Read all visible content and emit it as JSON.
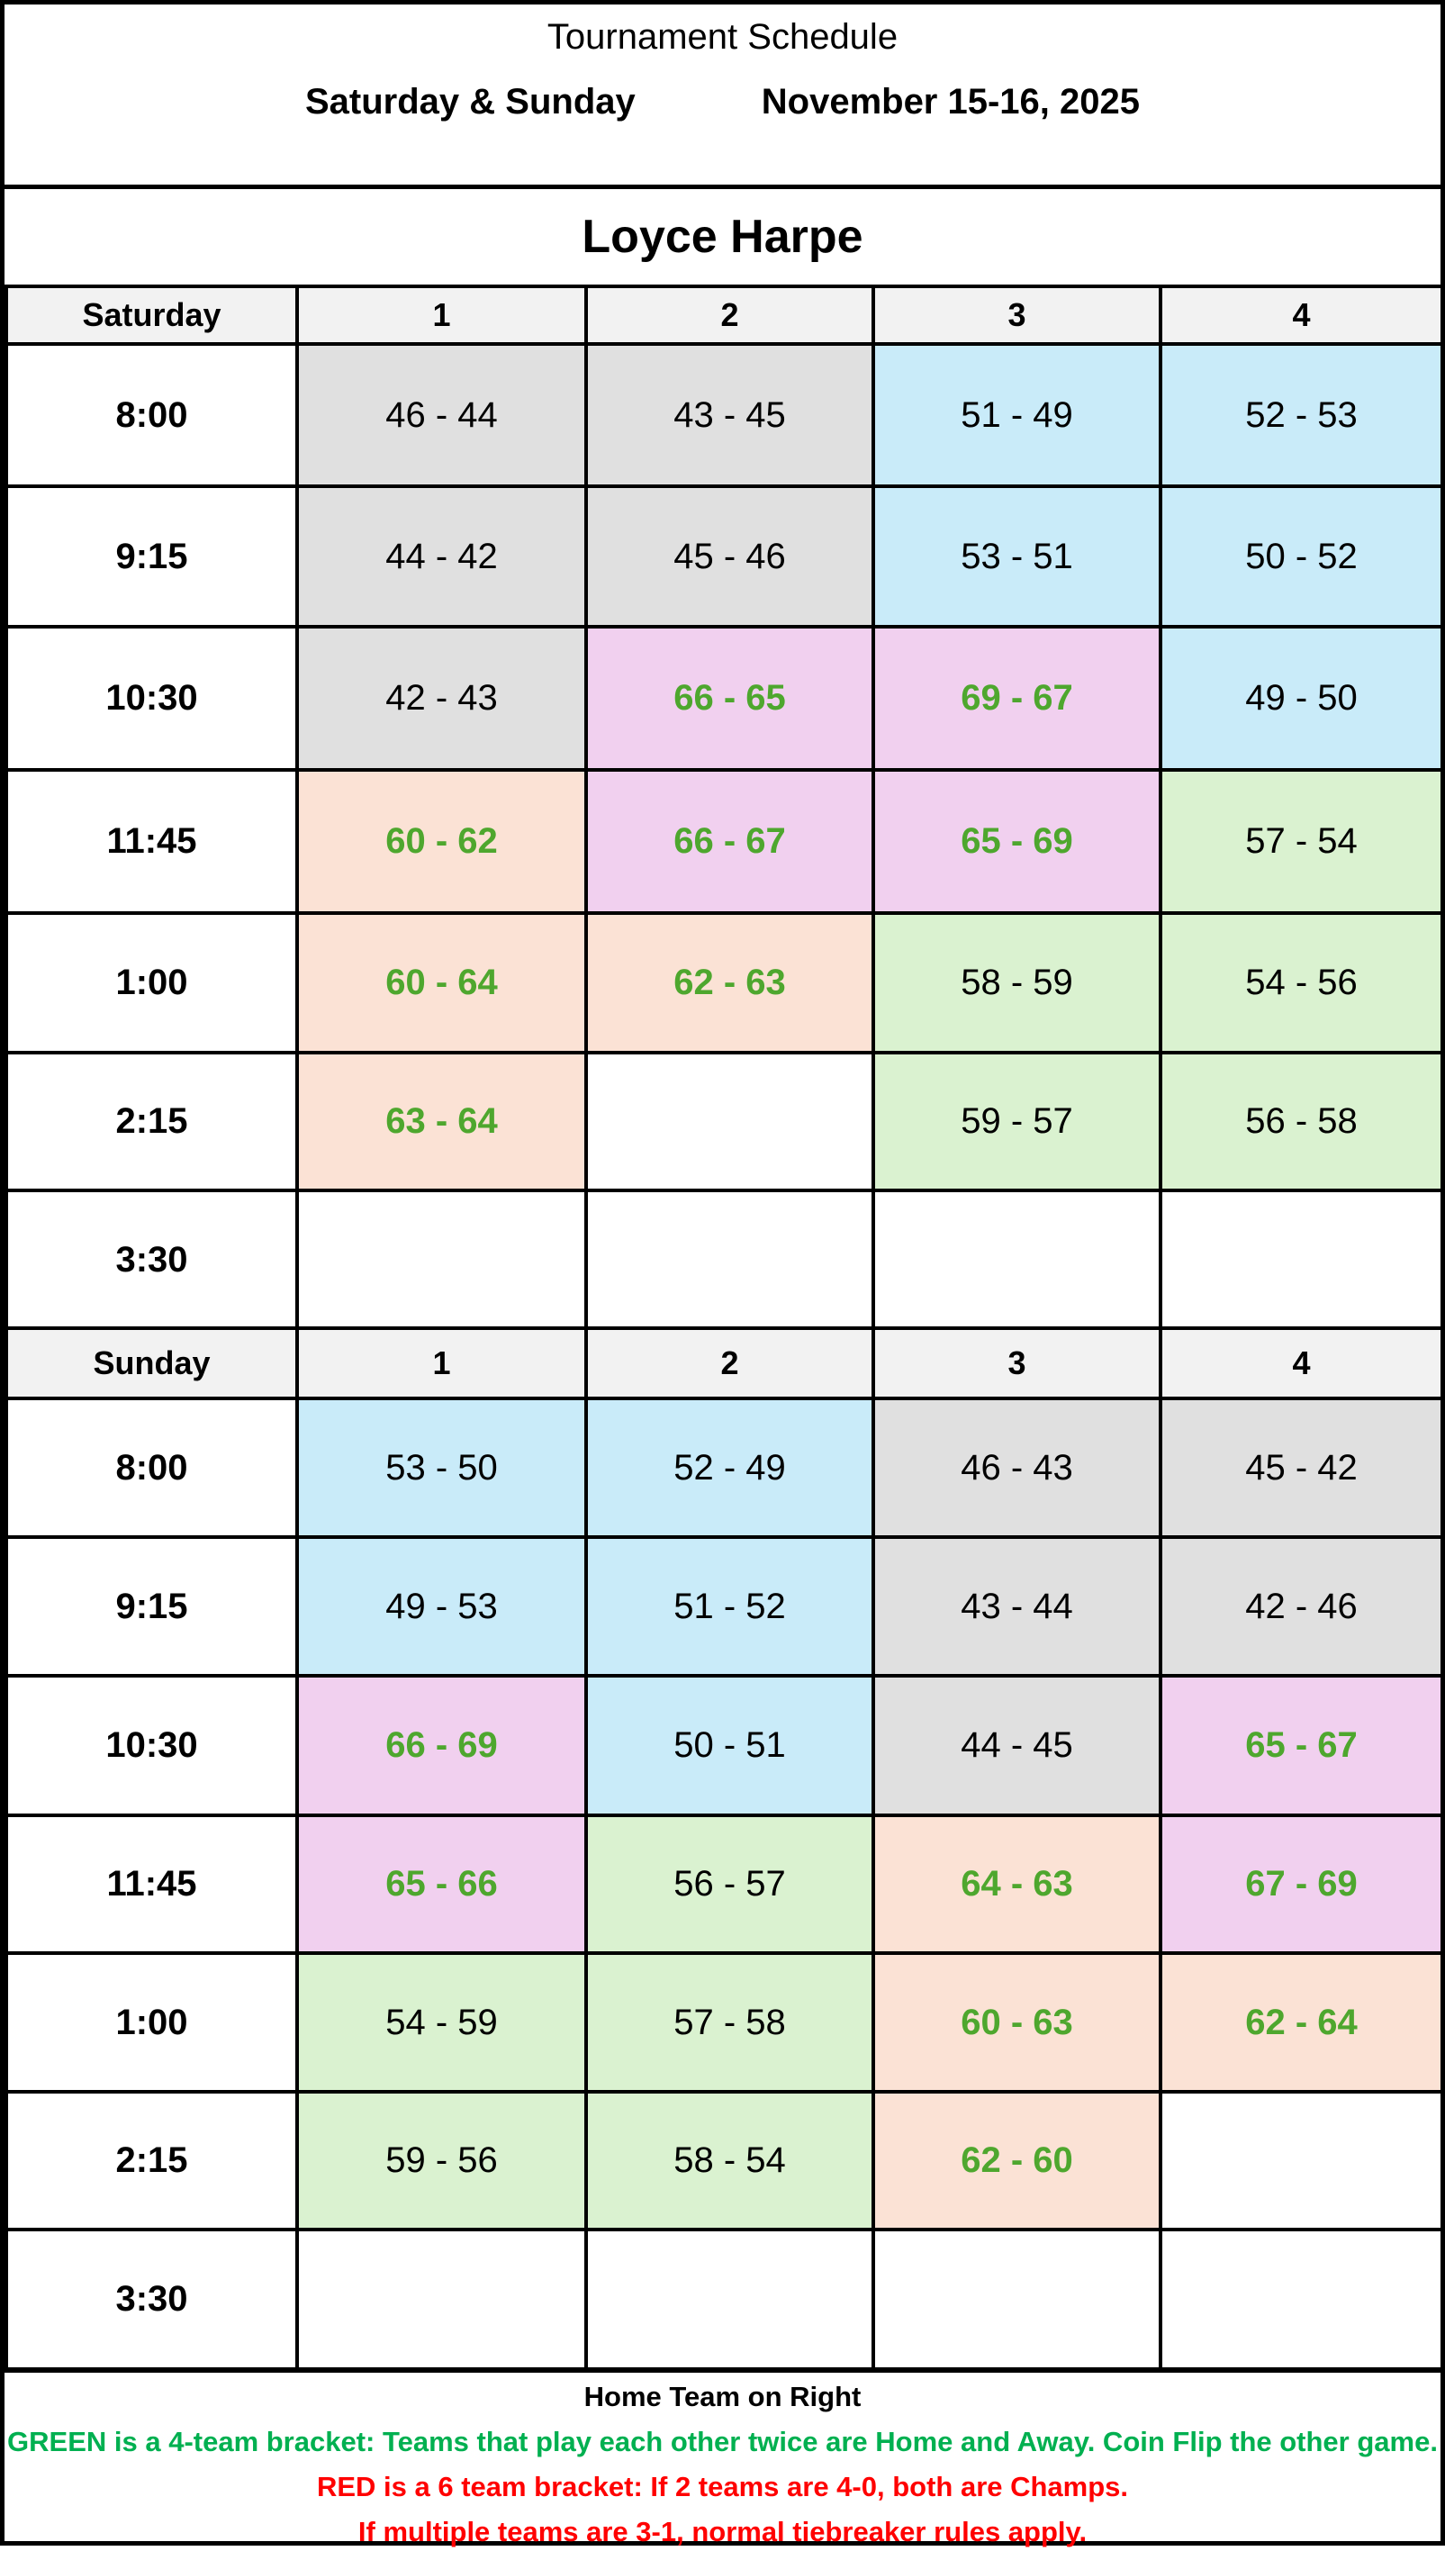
{
  "header": {
    "title": "Tournament Schedule",
    "days_label": "Saturday & Sunday",
    "dates_label": "November 15-16, 2025"
  },
  "venue": "Loyce Harpe",
  "colors": {
    "gray": "#e0e0e0",
    "blue": "#c9ebf9",
    "pink": "#f1d0ef",
    "peach": "#fbe2d5",
    "green": "#daf2d0",
    "white": "#ffffff",
    "bracket_text_green": "#4ea72e"
  },
  "days": [
    {
      "label": "Saturday",
      "courts": [
        "1",
        "2",
        "3",
        "4"
      ],
      "rows": [
        {
          "time": "8:00",
          "cells": [
            {
              "text": "46 - 44",
              "color": "gray"
            },
            {
              "text": "43 - 45",
              "color": "gray"
            },
            {
              "text": "51 - 49",
              "color": "blue"
            },
            {
              "text": "52 - 53",
              "color": "blue"
            }
          ]
        },
        {
          "time": "9:15",
          "cells": [
            {
              "text": "44 - 42",
              "color": "gray"
            },
            {
              "text": "45 - 46",
              "color": "gray"
            },
            {
              "text": "53 - 51",
              "color": "blue"
            },
            {
              "text": "50 - 52",
              "color": "blue"
            }
          ]
        },
        {
          "time": "10:30",
          "cells": [
            {
              "text": "42 - 43",
              "color": "gray"
            },
            {
              "text": "66 - 65",
              "color": "pink",
              "bold_green": true
            },
            {
              "text": "69 - 67",
              "color": "pink",
              "bold_green": true
            },
            {
              "text": "49 - 50",
              "color": "blue"
            }
          ]
        },
        {
          "time": "11:45",
          "cells": [
            {
              "text": "60 - 62",
              "color": "peach",
              "bold_green": true
            },
            {
              "text": "66 - 67",
              "color": "pink",
              "bold_green": true
            },
            {
              "text": "65 - 69",
              "color": "pink",
              "bold_green": true
            },
            {
              "text": "57 - 54",
              "color": "green"
            }
          ]
        },
        {
          "time": "1:00",
          "cells": [
            {
              "text": "60 - 64",
              "color": "peach",
              "bold_green": true
            },
            {
              "text": "62 - 63",
              "color": "peach",
              "bold_green": true
            },
            {
              "text": "58 - 59",
              "color": "green"
            },
            {
              "text": "54 - 56",
              "color": "green"
            }
          ]
        },
        {
          "time": "2:15",
          "cells": [
            {
              "text": "63 - 64",
              "color": "peach",
              "bold_green": true
            },
            {
              "text": "",
              "color": "white"
            },
            {
              "text": "59 - 57",
              "color": "green"
            },
            {
              "text": "56 - 58",
              "color": "green"
            }
          ]
        },
        {
          "time": "3:30",
          "cells": [
            {
              "text": "",
              "color": "white"
            },
            {
              "text": "",
              "color": "white"
            },
            {
              "text": "",
              "color": "white"
            },
            {
              "text": "",
              "color": "white"
            }
          ]
        }
      ]
    },
    {
      "label": "Sunday",
      "courts": [
        "1",
        "2",
        "3",
        "4"
      ],
      "rows": [
        {
          "time": "8:00",
          "cells": [
            {
              "text": "53 - 50",
              "color": "blue"
            },
            {
              "text": "52 - 49",
              "color": "blue"
            },
            {
              "text": "46 - 43",
              "color": "gray"
            },
            {
              "text": "45 - 42",
              "color": "gray"
            }
          ]
        },
        {
          "time": "9:15",
          "cells": [
            {
              "text": "49 - 53",
              "color": "blue"
            },
            {
              "text": "51 - 52",
              "color": "blue"
            },
            {
              "text": "43 - 44",
              "color": "gray"
            },
            {
              "text": "42 - 46",
              "color": "gray"
            }
          ]
        },
        {
          "time": "10:30",
          "cells": [
            {
              "text": "66 - 69",
              "color": "pink",
              "bold_green": true
            },
            {
              "text": "50 - 51",
              "color": "blue"
            },
            {
              "text": "44 - 45",
              "color": "gray"
            },
            {
              "text": "65 - 67",
              "color": "pink",
              "bold_green": true
            }
          ]
        },
        {
          "time": "11:45",
          "cells": [
            {
              "text": "65 - 66",
              "color": "pink",
              "bold_green": true
            },
            {
              "text": "56 - 57",
              "color": "green"
            },
            {
              "text": "64 - 63",
              "color": "peach",
              "bold_green": true
            },
            {
              "text": "67 - 69",
              "color": "pink",
              "bold_green": true
            }
          ]
        },
        {
          "time": "1:00",
          "cells": [
            {
              "text": "54 - 59",
              "color": "green"
            },
            {
              "text": "57 - 58",
              "color": "green"
            },
            {
              "text": "60 - 63",
              "color": "peach",
              "bold_green": true
            },
            {
              "text": "62 - 64",
              "color": "peach",
              "bold_green": true
            }
          ]
        },
        {
          "time": "2:15",
          "cells": [
            {
              "text": "59 - 56",
              "color": "green"
            },
            {
              "text": "58 - 54",
              "color": "green"
            },
            {
              "text": "62 - 60",
              "color": "peach",
              "bold_green": true
            },
            {
              "text": "",
              "color": "white"
            }
          ]
        },
        {
          "time": "3:30",
          "cells": [
            {
              "text": "",
              "color": "white"
            },
            {
              "text": "",
              "color": "white"
            },
            {
              "text": "",
              "color": "white"
            },
            {
              "text": "",
              "color": "white"
            }
          ]
        }
      ]
    }
  ],
  "footer": {
    "home_note": "Home Team on Right",
    "green_note": "GREEN is a 4-team bracket:  Teams that play each other twice are Home and Away.  Coin Flip the other game.",
    "red_note_1": "RED is a 6 team bracket:  If 2 teams are 4-0, both are Champs.",
    "red_note_2": "If multiple teams are 3-1, normal tiebreaker rules apply.",
    "green_color": "#00b050",
    "red_color": "#ff0000"
  }
}
